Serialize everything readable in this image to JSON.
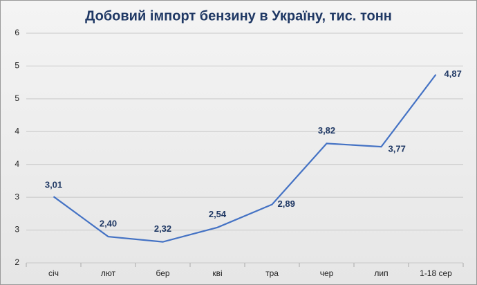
{
  "chart_data": {
    "type": "line",
    "title": "Добовий імпорт бензину в Україну, тис. тонн",
    "categories": [
      "січ",
      "лют",
      "бер",
      "кві",
      "тра",
      "чер",
      "лип",
      "1-18 сер"
    ],
    "series": [
      {
        "name": "Добовий імпорт бензину",
        "color": "#4472c4",
        "values": [
          3.01,
          2.4,
          2.32,
          2.54,
          2.89,
          3.82,
          3.77,
          4.87
        ],
        "value_labels": [
          "3,01",
          "2,40",
          "2,32",
          "2,54",
          "2,89",
          "3,82",
          "3,77",
          "4,87"
        ]
      }
    ],
    "ylim": [
      2,
      5.5
    ],
    "yticks": [
      2,
      {
        "value": 2.5,
        "label": "3"
      },
      3,
      {
        "value": 3.5,
        "label": "4"
      },
      4,
      {
        "value": 4.5,
        "label": "5"
      },
      5,
      {
        "value": 5.5,
        "label": "6"
      }
    ],
    "grid": true
  }
}
